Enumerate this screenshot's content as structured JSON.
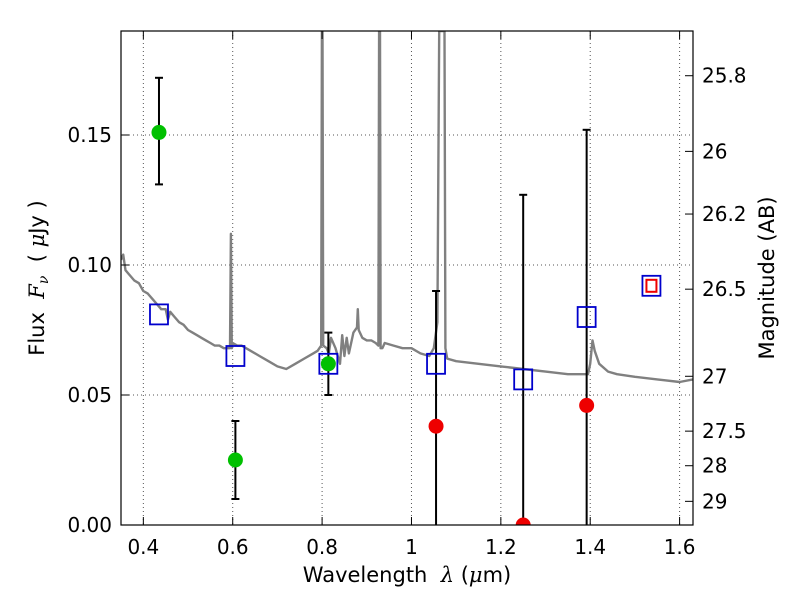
{
  "chart_data": {
    "type": "scatter",
    "title": "",
    "xlabel": "Wavelength  λ (μm)",
    "ylabel": "Flux  Fν  ( μJy )",
    "ylabel_right": "Magnitude (AB)",
    "xlim": [
      0.35,
      1.63
    ],
    "ylim": [
      0.0,
      0.19
    ],
    "grid": true,
    "x_ticks": [
      0.4,
      0.6,
      0.8,
      1.0,
      1.2,
      1.4,
      1.6
    ],
    "x_tick_labels": [
      "0.4",
      "0.6",
      "0.8",
      "1",
      "1.2",
      "1.4",
      "1.6"
    ],
    "y_ticks": [
      0.0,
      0.05,
      0.1,
      0.15
    ],
    "y_tick_labels": [
      "0.00",
      "0.05",
      "0.10",
      "0.15"
    ],
    "right_ticks": [
      {
        "label": "25.8",
        "flux": 0.1728
      },
      {
        "label": "26",
        "flux": 0.1437
      },
      {
        "label": "26.2",
        "flux": 0.1196
      },
      {
        "label": "26.5",
        "flux": 0.0907
      },
      {
        "label": "27",
        "flux": 0.0572
      },
      {
        "label": "27.5",
        "flux": 0.0361
      },
      {
        "label": "28",
        "flux": 0.0228
      },
      {
        "label": "29",
        "flux": 0.0091
      }
    ],
    "colors": {
      "detection": "#00c000",
      "nondetection": "#ee0000",
      "model_points": "#0000cc",
      "sed": "#808080",
      "errorbar": "#000000",
      "special_marker_fill": "#ee0000"
    },
    "series": [
      {
        "kind": "detection",
        "points": [
          {
            "x": 0.435,
            "y": 0.151,
            "ylo": 0.131,
            "yhi": 0.172
          },
          {
            "x": 0.606,
            "y": 0.025,
            "ylo": 0.01,
            "yhi": 0.04
          },
          {
            "x": 0.814,
            "y": 0.062,
            "ylo": 0.05,
            "yhi": 0.074
          }
        ]
      },
      {
        "kind": "nondetection",
        "points": [
          {
            "x": 1.055,
            "y": 0.038,
            "ylo": 0.0,
            "yhi": 0.09
          },
          {
            "x": 1.25,
            "y": 0.0,
            "ylo": 0.0,
            "yhi": 0.127
          },
          {
            "x": 1.392,
            "y": 0.046,
            "ylo": 0.0,
            "yhi": 0.152
          }
        ]
      },
      {
        "kind": "model_points",
        "points": [
          {
            "x": 0.435,
            "y": 0.081
          },
          {
            "x": 0.606,
            "y": 0.065
          },
          {
            "x": 0.814,
            "y": 0.062
          },
          {
            "x": 1.055,
            "y": 0.062
          },
          {
            "x": 1.25,
            "y": 0.056
          },
          {
            "x": 1.392,
            "y": 0.08
          },
          {
            "x": 1.537,
            "y": 0.092
          }
        ]
      },
      {
        "kind": "special_marker",
        "points": [
          {
            "x": 1.537,
            "y": 0.092
          }
        ]
      },
      {
        "kind": "sed",
        "points": [
          [
            0.35,
            0.102
          ],
          [
            0.355,
            0.104
          ],
          [
            0.36,
            0.098
          ],
          [
            0.37,
            0.096
          ],
          [
            0.38,
            0.094
          ],
          [
            0.39,
            0.093
          ],
          [
            0.4,
            0.09
          ],
          [
            0.41,
            0.089
          ],
          [
            0.42,
            0.087
          ],
          [
            0.43,
            0.085
          ],
          [
            0.44,
            0.083
          ],
          [
            0.45,
            0.083
          ],
          [
            0.455,
            0.079
          ],
          [
            0.46,
            0.082
          ],
          [
            0.47,
            0.08
          ],
          [
            0.48,
            0.078
          ],
          [
            0.49,
            0.077
          ],
          [
            0.5,
            0.075
          ],
          [
            0.51,
            0.074
          ],
          [
            0.52,
            0.073
          ],
          [
            0.53,
            0.072
          ],
          [
            0.54,
            0.071
          ],
          [
            0.55,
            0.07
          ],
          [
            0.56,
            0.069
          ],
          [
            0.57,
            0.069
          ],
          [
            0.58,
            0.068
          ],
          [
            0.59,
            0.068
          ],
          [
            0.594,
            0.068
          ],
          [
            0.596,
            0.112
          ],
          [
            0.598,
            0.068
          ],
          [
            0.6,
            0.07
          ],
          [
            0.61,
            0.069
          ],
          [
            0.62,
            0.069
          ],
          [
            0.64,
            0.067
          ],
          [
            0.66,
            0.065
          ],
          [
            0.68,
            0.063
          ],
          [
            0.7,
            0.061
          ],
          [
            0.72,
            0.06
          ],
          [
            0.74,
            0.062
          ],
          [
            0.76,
            0.064
          ],
          [
            0.78,
            0.066
          ],
          [
            0.79,
            0.067
          ],
          [
            0.798,
            0.069
          ],
          [
            0.7995,
            0.19
          ],
          [
            0.801,
            0.19
          ],
          [
            0.8025,
            0.069
          ],
          [
            0.81,
            0.068
          ],
          [
            0.815,
            0.066
          ],
          [
            0.82,
            0.072
          ],
          [
            0.83,
            0.068
          ],
          [
            0.84,
            0.062
          ],
          [
            0.845,
            0.073
          ],
          [
            0.85,
            0.065
          ],
          [
            0.855,
            0.072
          ],
          [
            0.86,
            0.066
          ],
          [
            0.87,
            0.074
          ],
          [
            0.878,
            0.076
          ],
          [
            0.88,
            0.083
          ],
          [
            0.882,
            0.075
          ],
          [
            0.89,
            0.072
          ],
          [
            0.9,
            0.071
          ],
          [
            0.91,
            0.071
          ],
          [
            0.92,
            0.07
          ],
          [
            0.926,
            0.069
          ],
          [
            0.9275,
            0.19
          ],
          [
            0.9295,
            0.19
          ],
          [
            0.931,
            0.068
          ],
          [
            0.935,
            0.068
          ],
          [
            0.94,
            0.07
          ],
          [
            0.96,
            0.069
          ],
          [
            0.98,
            0.068
          ],
          [
            1.0,
            0.068
          ],
          [
            1.02,
            0.066
          ],
          [
            1.04,
            0.065
          ],
          [
            1.05,
            0.068
          ],
          [
            1.058,
            0.078
          ],
          [
            1.062,
            0.19
          ],
          [
            1.074,
            0.19
          ],
          [
            1.076,
            0.068
          ],
          [
            1.08,
            0.064
          ],
          [
            1.1,
            0.063
          ],
          [
            1.15,
            0.062
          ],
          [
            1.2,
            0.061
          ],
          [
            1.25,
            0.06
          ],
          [
            1.3,
            0.059
          ],
          [
            1.35,
            0.058
          ],
          [
            1.38,
            0.058
          ],
          [
            1.395,
            0.058
          ],
          [
            1.4,
            0.062
          ],
          [
            1.405,
            0.071
          ],
          [
            1.41,
            0.067
          ],
          [
            1.42,
            0.062
          ],
          [
            1.44,
            0.059
          ],
          [
            1.46,
            0.058
          ],
          [
            1.5,
            0.057
          ],
          [
            1.55,
            0.056
          ],
          [
            1.6,
            0.055
          ],
          [
            1.63,
            0.056
          ]
        ]
      }
    ]
  }
}
